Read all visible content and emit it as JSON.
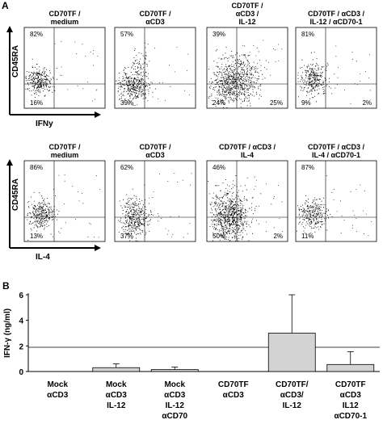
{
  "panel_a": {
    "letter": "A",
    "rows": [
      {
        "y_label": "CD45RA",
        "x_label": "IFNy",
        "plots": [
          {
            "title_lines": [
              "CD70TF /",
              "medium"
            ],
            "ul": "82%",
            "ll": "16%",
            "lr": ""
          },
          {
            "title_lines": [
              "CD70TF /",
              "αCD3"
            ],
            "ul": "57%",
            "ll": "39%",
            "lr": ""
          },
          {
            "title_lines": [
              "CD70TF /",
              "αCD3 /",
              "IL-12"
            ],
            "ul": "39%",
            "ll": "24%",
            "lr": "25%"
          },
          {
            "title_lines": [
              "CD70TF / αCD3 /",
              "IL-12 / αCD70-1"
            ],
            "ul": "81%",
            "ll": "9%",
            "lr": "2%"
          }
        ]
      },
      {
        "y_label": "CD45RA",
        "x_label": "IL-4",
        "plots": [
          {
            "title_lines": [
              "CD70TF /",
              "medium"
            ],
            "ul": "86%",
            "ll": "13%",
            "lr": ""
          },
          {
            "title_lines": [
              "CD70TF /",
              "αCD3"
            ],
            "ul": "62%",
            "ll": "37%",
            "lr": ""
          },
          {
            "title_lines": [
              "CD70TF / αCD3 /",
              "IL-4"
            ],
            "ul": "46%",
            "ll": "50%",
            "lr": "2%"
          },
          {
            "title_lines": [
              "CD70TF / αCD3 /",
              "IL-4 / αCD70-1"
            ],
            "ul": "87%",
            "ll": "11%",
            "lr": ""
          }
        ]
      }
    ]
  },
  "panel_b": {
    "letter": "B"
  },
  "chart_data": {
    "type": "bar",
    "ylabel": "IFN-γ (ng/ml)",
    "ylim": [
      0,
      6
    ],
    "yticks": [
      "0",
      "2",
      "4",
      "6"
    ],
    "categories": [
      [
        "Mock",
        "αCD3"
      ],
      [
        "Mock",
        "αCD3",
        "IL-12"
      ],
      [
        "Mock",
        "αCD3",
        "IL-12",
        "αCD70"
      ],
      [
        "CD70TF",
        "αCD3"
      ],
      [
        "CD70TF/",
        "αCD3/",
        "IL-12"
      ],
      [
        "CD70TF",
        "αCD3",
        "IL12",
        "αCD70-1"
      ]
    ],
    "values": [
      0,
      0.3,
      0.15,
      0,
      3.0,
      0.55
    ],
    "errors": [
      0,
      0.3,
      0.2,
      0,
      3.0,
      1.0
    ],
    "bar_color": "#d3d3d3"
  }
}
